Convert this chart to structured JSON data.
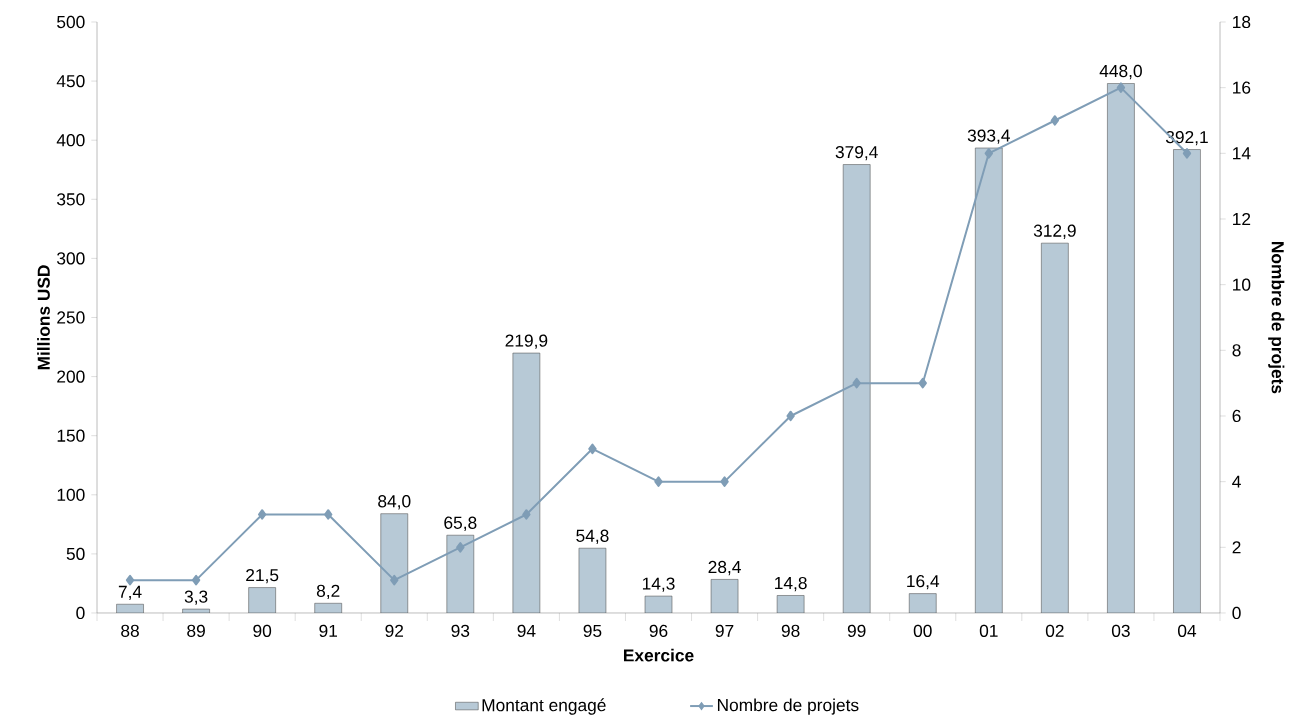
{
  "chart_data": {
    "type": "bar",
    "categories": [
      "88",
      "89",
      "90",
      "91",
      "92",
      "93",
      "94",
      "95",
      "96",
      "97",
      "98",
      "99",
      "00",
      "01",
      "02",
      "03",
      "04"
    ],
    "series": [
      {
        "name": "Montant engagé",
        "type": "bar",
        "color": "#b7c9d6",
        "values": [
          7.4,
          3.3,
          21.5,
          8.2,
          84.0,
          65.8,
          219.9,
          54.8,
          14.3,
          28.4,
          14.8,
          379.4,
          16.4,
          393.4,
          312.9,
          448.0,
          392.1
        ],
        "value_labels": [
          "7,4",
          "3,3",
          "21,5",
          "8,2",
          "84,0",
          "65,8",
          "219,9",
          "54,8",
          "14,3",
          "28,4",
          "14,8",
          "379,4",
          "16,4",
          "393,4",
          "312,9",
          "448,0",
          "392,1"
        ]
      },
      {
        "name": "Nombre de projets",
        "type": "line",
        "axis": "y2",
        "color": "#7f9db6",
        "marker": "diamond",
        "values": [
          1,
          1,
          3,
          3,
          1,
          2,
          3,
          5,
          4,
          4,
          6,
          7,
          7,
          14,
          15,
          16,
          14
        ]
      }
    ],
    "xlabel": "Exercice",
    "ylabel": "Millions USD",
    "y2label": "Nombre de projets",
    "ylim": [
      0,
      500
    ],
    "yticks": [
      0,
      50,
      100,
      150,
      200,
      250,
      300,
      350,
      400,
      450,
      500
    ],
    "y2lim": [
      0,
      18
    ],
    "y2ticks": [
      0,
      2,
      4,
      6,
      8,
      10,
      12,
      14,
      16,
      18
    ],
    "legend": "bottom"
  }
}
